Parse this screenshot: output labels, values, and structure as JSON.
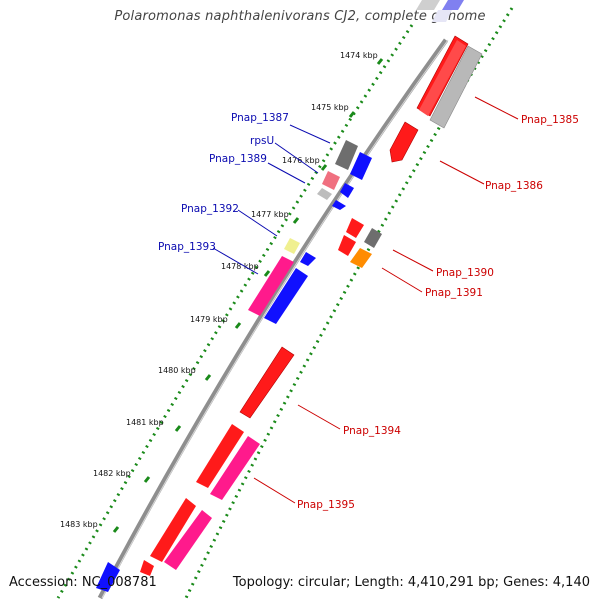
{
  "title": "Polaromonas naphthalenivorans CJ2, complete genome",
  "accession": "Accession: NC_008781",
  "topology": "Topology: circular; Length: 4,410,291 bp; Genes: 4,140",
  "colors": {
    "backbone": "#8a8a8a",
    "gc_dots": "#1a8a1a",
    "tick_marks": "#1a8a1a",
    "blue_label": "#0a0ab0",
    "red_label": "#cc0000"
  },
  "ticks": [
    "1474 kbp",
    "1475 kbp",
    "1476 kbp",
    "1477 kbp",
    "1478 kbp",
    "1479 kbp",
    "1480 kbp",
    "1481 kbp",
    "1482 kbp",
    "1483 kbp"
  ],
  "gene_labels": {
    "pnap_1385": "Pnap_1385",
    "pnap_1386": "Pnap_1386",
    "pnap_1387": "Pnap_1387",
    "rpsu": "rpsU",
    "pnap_1389": "Pnap_1389",
    "pnap_1390": "Pnap_1390",
    "pnap_1391": "Pnap_1391",
    "pnap_1392": "Pnap_1392",
    "pnap_1393": "Pnap_1393",
    "pnap_1394": "Pnap_1394",
    "pnap_1395": "Pnap_1395"
  }
}
